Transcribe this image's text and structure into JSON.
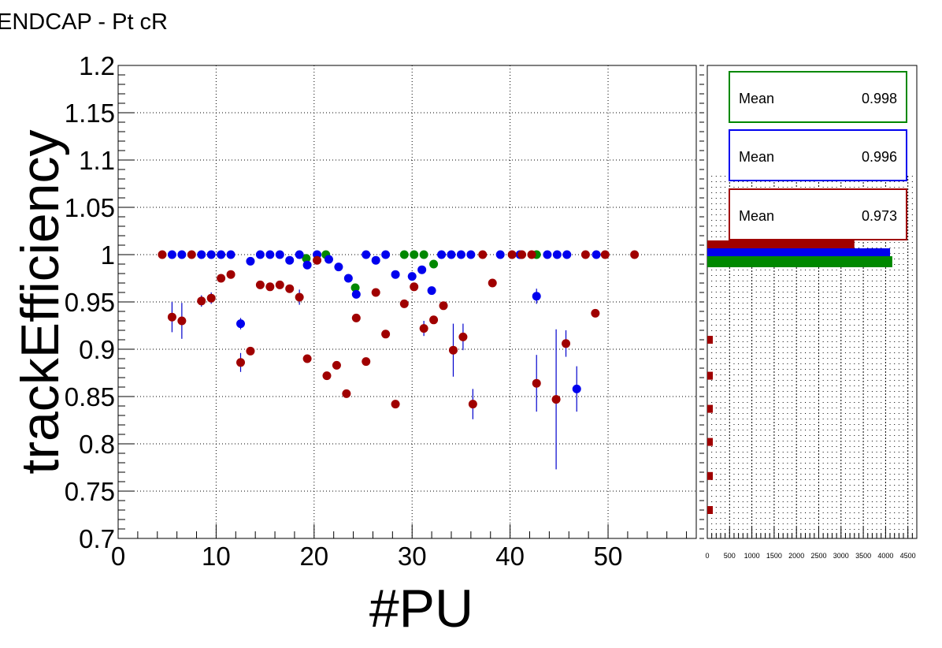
{
  "chart_data": {
    "type": "scatter",
    "title": "ENDCAP - Pt cR",
    "xlabel": "#PU",
    "ylabel": "trackEfficiency",
    "xlim": [
      0,
      59
    ],
    "ylim": [
      0.7,
      1.2
    ],
    "grid": true,
    "x_ticks": [
      "0",
      "10",
      "20",
      "30",
      "40",
      "50"
    ],
    "y_ticks": [
      "0.7",
      "0.75",
      "0.8",
      "0.85",
      "0.9",
      "0.95",
      "1",
      "1.05",
      "1.1",
      "1.15",
      "1.2"
    ],
    "series": [
      {
        "color": "#008800",
        "points": [
          {
            "x": 19.2,
            "y": 0.996
          },
          {
            "x": 21.2,
            "y": 1.0
          },
          {
            "x": 24.2,
            "y": 0.965
          },
          {
            "x": 29.2,
            "y": 1.0
          },
          {
            "x": 30.2,
            "y": 1.0
          },
          {
            "x": 31.2,
            "y": 1.0
          },
          {
            "x": 32.2,
            "y": 0.99
          },
          {
            "x": 42.7,
            "y": 1.0
          }
        ]
      },
      {
        "color": "#0000ee",
        "points": [
          {
            "x": 5.5,
            "y": 1.0
          },
          {
            "x": 6.5,
            "y": 1.0
          },
          {
            "x": 8.5,
            "y": 1.0
          },
          {
            "x": 9.5,
            "y": 1.0
          },
          {
            "x": 10.5,
            "y": 1.0
          },
          {
            "x": 11.5,
            "y": 1.0
          },
          {
            "x": 12.5,
            "y": 0.927,
            "err": 0.006
          },
          {
            "x": 13.5,
            "y": 0.993
          },
          {
            "x": 14.5,
            "y": 1.0
          },
          {
            "x": 15.5,
            "y": 1.0
          },
          {
            "x": 16.5,
            "y": 1.0
          },
          {
            "x": 17.5,
            "y": 0.994
          },
          {
            "x": 18.5,
            "y": 1.0
          },
          {
            "x": 19.3,
            "y": 0.989
          },
          {
            "x": 20.3,
            "y": 1.0
          },
          {
            "x": 21.5,
            "y": 0.995
          },
          {
            "x": 22.5,
            "y": 0.987
          },
          {
            "x": 23.5,
            "y": 0.975
          },
          {
            "x": 24.3,
            "y": 0.958
          },
          {
            "x": 25.3,
            "y": 1.0
          },
          {
            "x": 26.3,
            "y": 0.994
          },
          {
            "x": 27.3,
            "y": 1.0
          },
          {
            "x": 28.3,
            "y": 0.979
          },
          {
            "x": 30.0,
            "y": 0.977
          },
          {
            "x": 31.0,
            "y": 0.984
          },
          {
            "x": 32.0,
            "y": 0.962
          },
          {
            "x": 33.0,
            "y": 1.0
          },
          {
            "x": 34.0,
            "y": 1.0
          },
          {
            "x": 35.0,
            "y": 1.0
          },
          {
            "x": 36.0,
            "y": 1.0
          },
          {
            "x": 39.0,
            "y": 1.0
          },
          {
            "x": 41.0,
            "y": 1.0
          },
          {
            "x": 42.7,
            "y": 0.956,
            "err": 0.008
          },
          {
            "x": 43.8,
            "y": 1.0
          },
          {
            "x": 44.8,
            "y": 1.0
          },
          {
            "x": 45.8,
            "y": 1.0
          },
          {
            "x": 46.8,
            "y": 0.858,
            "err": 0.024
          },
          {
            "x": 48.8,
            "y": 1.0
          }
        ]
      },
      {
        "color": "#a00000",
        "points": [
          {
            "x": 4.5,
            "y": 1.0
          },
          {
            "x": 5.5,
            "y": 0.934,
            "err": 0.016
          },
          {
            "x": 6.5,
            "y": 0.93,
            "err": 0.019
          },
          {
            "x": 7.5,
            "y": 1.0
          },
          {
            "x": 8.5,
            "y": 0.951,
            "err": 0.006
          },
          {
            "x": 9.5,
            "y": 0.954,
            "err": 0.006
          },
          {
            "x": 10.5,
            "y": 0.975
          },
          {
            "x": 11.5,
            "y": 0.979
          },
          {
            "x": 12.5,
            "y": 0.886,
            "err": 0.01
          },
          {
            "x": 13.5,
            "y": 0.898
          },
          {
            "x": 14.5,
            "y": 0.968
          },
          {
            "x": 15.5,
            "y": 0.966
          },
          {
            "x": 16.5,
            "y": 0.968
          },
          {
            "x": 17.5,
            "y": 0.964
          },
          {
            "x": 18.5,
            "y": 0.955,
            "err": 0.008
          },
          {
            "x": 19.3,
            "y": 0.89
          },
          {
            "x": 20.3,
            "y": 0.994
          },
          {
            "x": 21.3,
            "y": 0.872
          },
          {
            "x": 22.3,
            "y": 0.883
          },
          {
            "x": 23.3,
            "y": 0.853
          },
          {
            "x": 24.3,
            "y": 0.933
          },
          {
            "x": 25.3,
            "y": 0.887
          },
          {
            "x": 26.3,
            "y": 0.96
          },
          {
            "x": 27.3,
            "y": 0.916
          },
          {
            "x": 28.3,
            "y": 0.842
          },
          {
            "x": 29.2,
            "y": 0.948
          },
          {
            "x": 30.2,
            "y": 0.966
          },
          {
            "x": 31.2,
            "y": 0.922,
            "err": 0.008
          },
          {
            "x": 32.2,
            "y": 0.931
          },
          {
            "x": 33.2,
            "y": 0.946
          },
          {
            "x": 34.2,
            "y": 0.899,
            "err": 0.028
          },
          {
            "x": 35.2,
            "y": 0.913,
            "err": 0.014
          },
          {
            "x": 36.2,
            "y": 0.842,
            "err": 0.016
          },
          {
            "x": 37.2,
            "y": 1.0
          },
          {
            "x": 38.2,
            "y": 0.97
          },
          {
            "x": 40.2,
            "y": 1.0
          },
          {
            "x": 41.2,
            "y": 1.0
          },
          {
            "x": 42.2,
            "y": 1.0
          },
          {
            "x": 42.7,
            "y": 0.864,
            "err": 0.03
          },
          {
            "x": 44.7,
            "y": 0.847,
            "err": 0.074
          },
          {
            "x": 45.7,
            "y": 0.906,
            "err": 0.014
          },
          {
            "x": 47.7,
            "y": 1.0
          },
          {
            "x": 48.7,
            "y": 0.938
          },
          {
            "x": 49.7,
            "y": 1.0
          },
          {
            "x": 52.7,
            "y": 1.0
          }
        ]
      }
    ],
    "side_histogram": {
      "type": "bar",
      "orientation": "horizontal",
      "xlim": [
        0,
        4700
      ],
      "x_ticks": [
        "0",
        "500",
        "1000",
        "1500",
        "2000",
        "2500",
        "3000",
        "3500",
        "4000",
        "4500"
      ],
      "bars": [
        {
          "color": "#a00000",
          "y": 1.0,
          "value": 3300
        },
        {
          "color": "#0000ee",
          "y": 1.0,
          "value": 4100
        },
        {
          "color": "#008800",
          "y": 1.0,
          "value": 4150
        },
        {
          "color": "#a00000",
          "y": 0.91,
          "value": 20
        },
        {
          "color": "#a00000",
          "y": 0.872,
          "value": 30
        },
        {
          "color": "#a00000",
          "y": 0.837,
          "value": 25
        },
        {
          "color": "#a00000",
          "y": 0.802,
          "value": 25
        },
        {
          "color": "#a00000",
          "y": 0.766,
          "value": 25
        },
        {
          "color": "#a00000",
          "y": 0.73,
          "value": 15
        }
      ]
    },
    "stats_boxes": [
      {
        "label": "Mean",
        "value": "0.998",
        "color": "#008800"
      },
      {
        "label": "Mean",
        "value": "0.996",
        "color": "#0000ee"
      },
      {
        "label": "Mean",
        "value": "0.973",
        "color": "#a00000"
      }
    ]
  }
}
